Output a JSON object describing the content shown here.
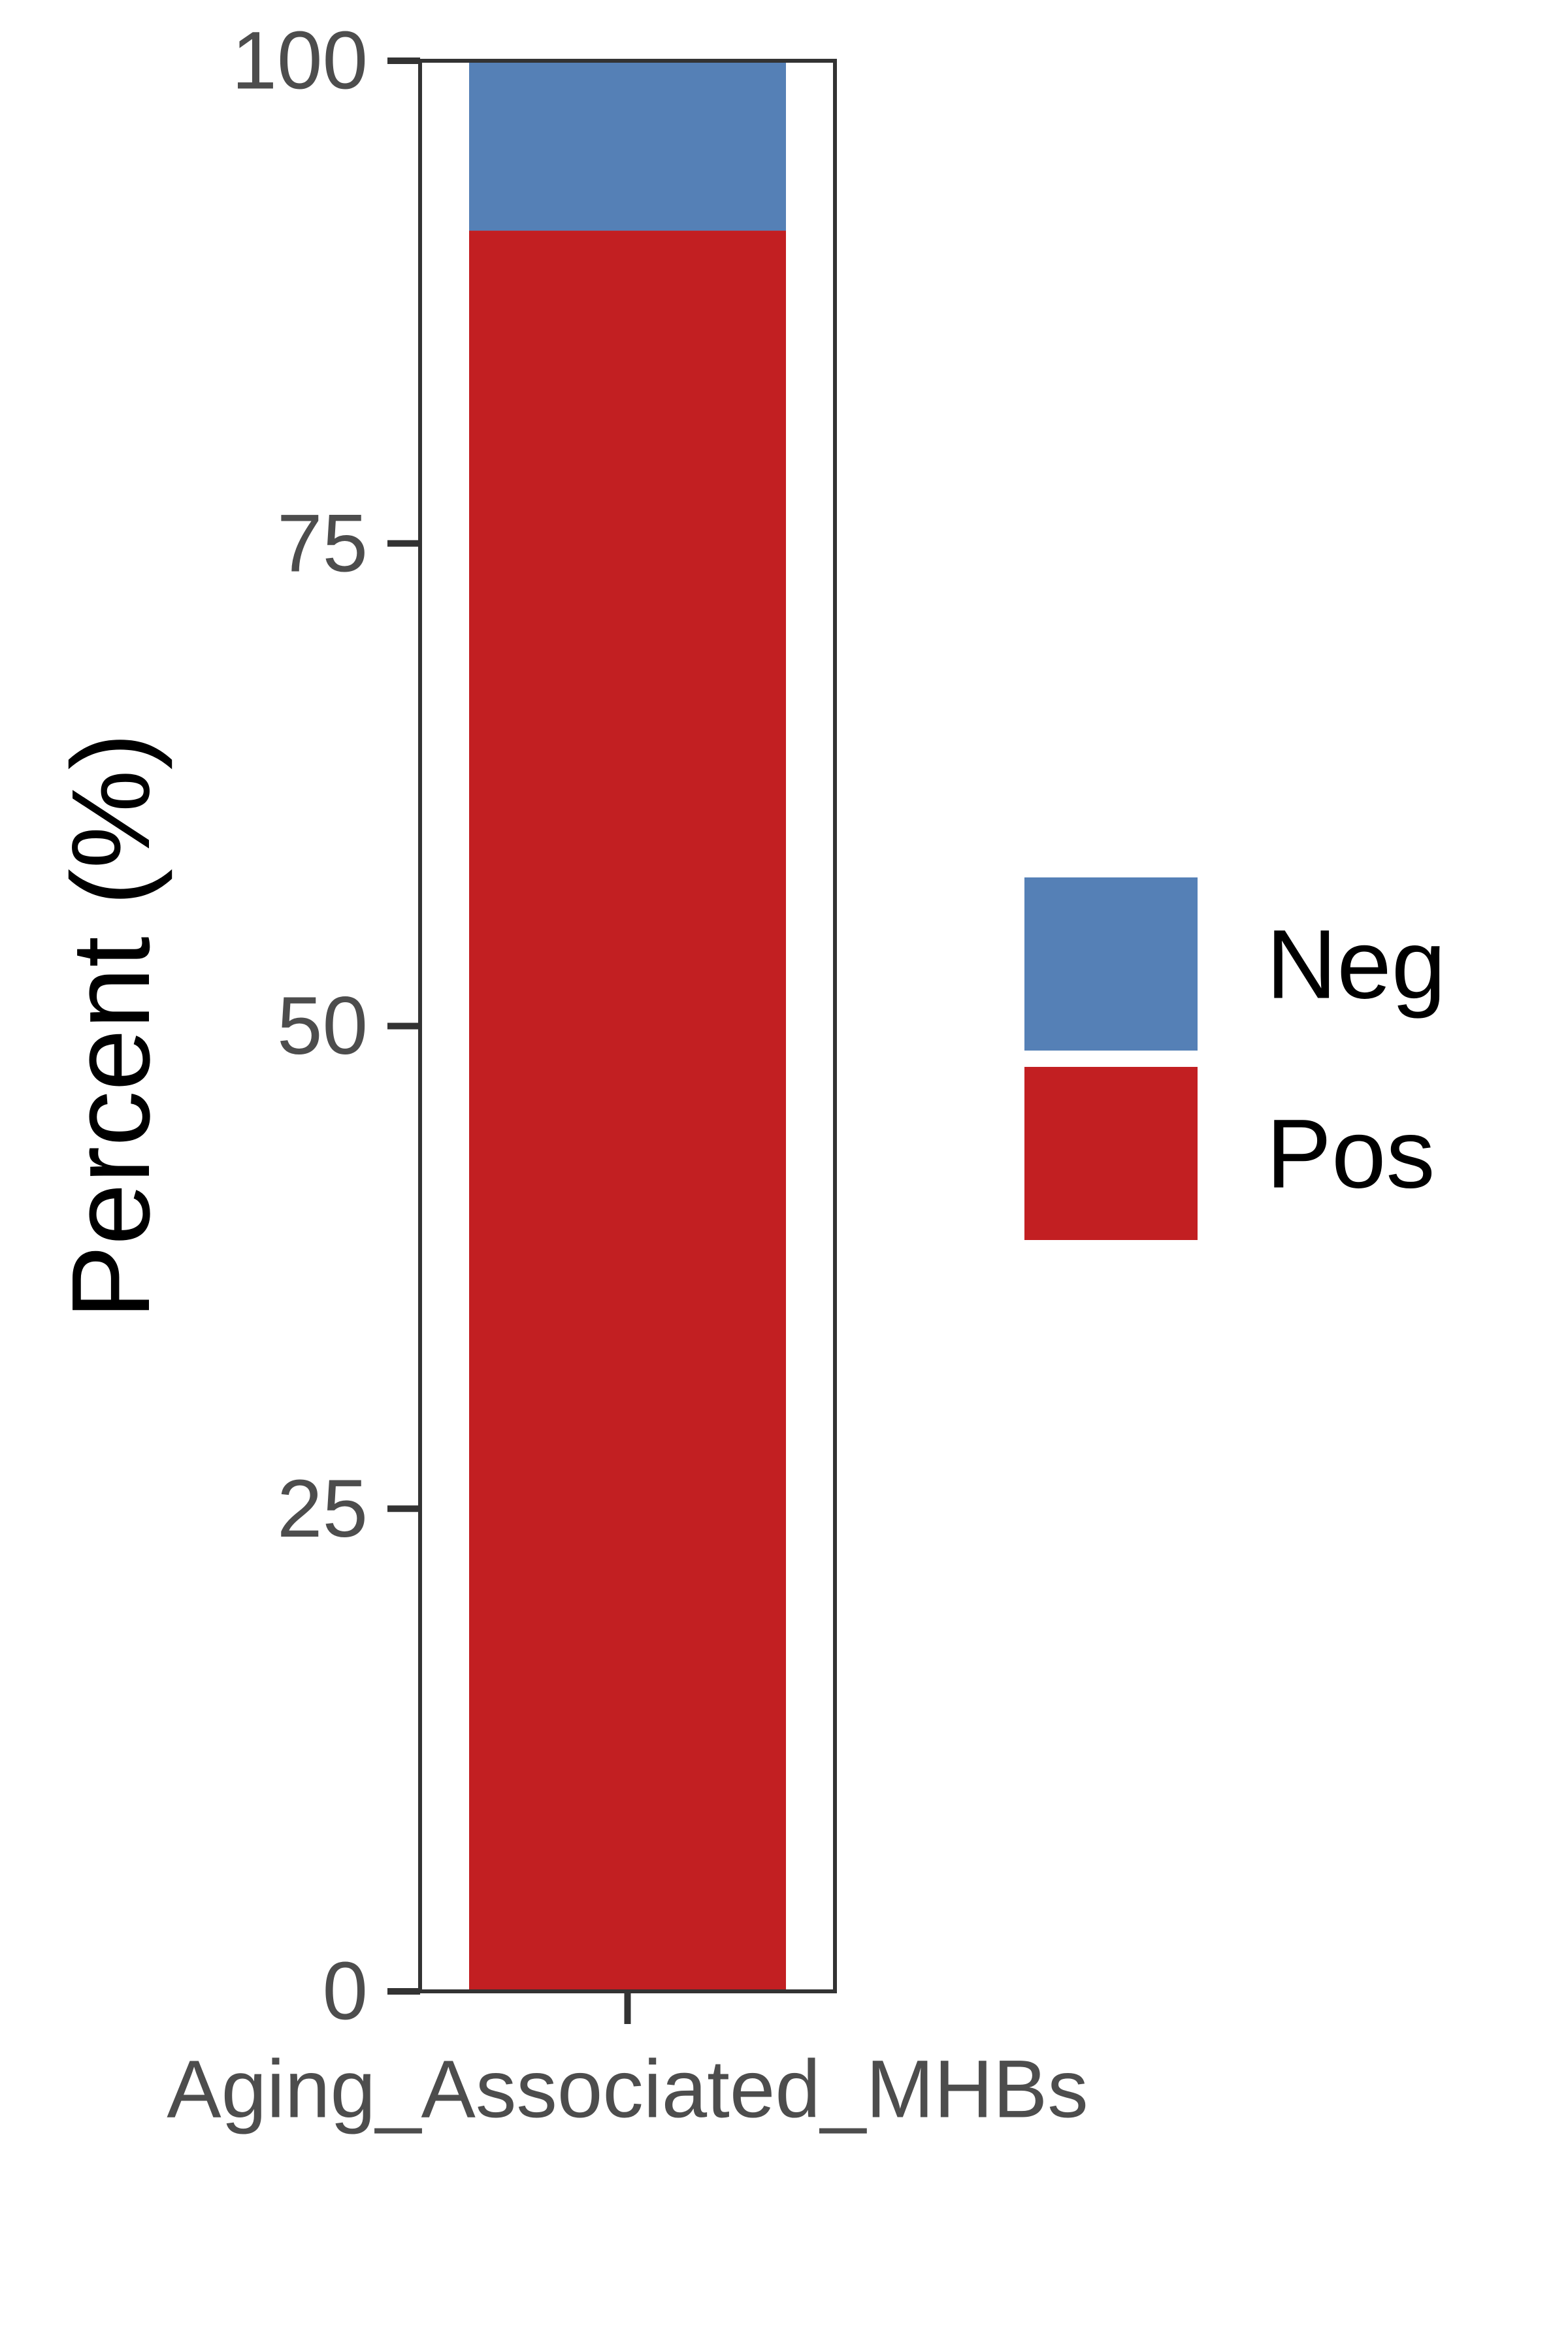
{
  "chart_data": {
    "type": "bar",
    "stacked": true,
    "categories": [
      "Aging_Associated_MHBs"
    ],
    "series": [
      {
        "name": "Neg",
        "values": [
          8.8
        ],
        "color": "#5580B6"
      },
      {
        "name": "Pos",
        "values": [
          91.2
        ],
        "color": "#C21F22"
      }
    ],
    "ylabel": "Percent (%)",
    "xlabel": "",
    "ylim": [
      0,
      100
    ],
    "yticks": [
      0,
      25,
      50,
      75,
      100
    ],
    "grid": false,
    "legend": {
      "placement": "right",
      "entries": [
        "Neg",
        "Pos"
      ]
    },
    "colors": {
      "axis": "#333333",
      "tick_label": "#4d4d4d"
    }
  }
}
